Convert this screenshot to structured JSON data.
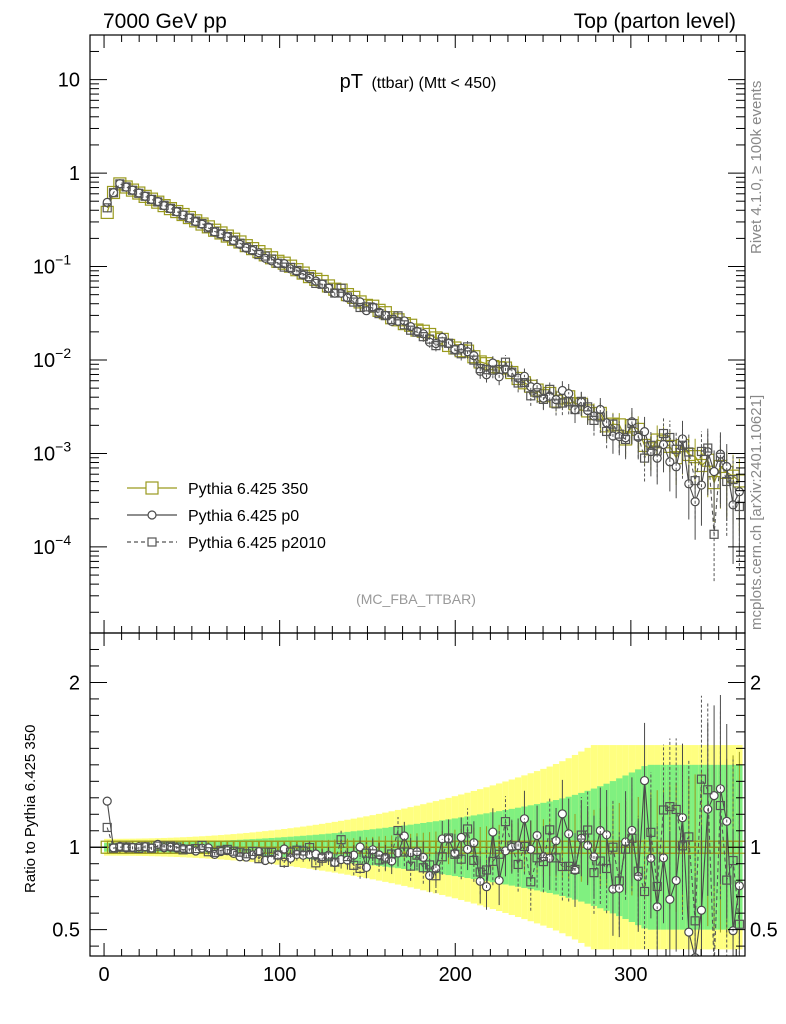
{
  "header": {
    "left": "7000 GeV pp",
    "right": "Top (parton level)"
  },
  "side_labels": {
    "rivet": "Rivet 4.1.0, ≥ 100k events",
    "mcplots": "mcplots.cern.ch [arXiv:2401.10621]"
  },
  "chart_data": {
    "type": "line",
    "title": "pT",
    "title_sub": "(ttbar) (Mtt < 450)",
    "analysis_label": "(MC_FBA_TTBAR)",
    "xlim": [
      -8,
      365
    ],
    "main_ylim": [
      1.2e-05,
      30
    ],
    "main_yscale": "log",
    "ratio_ylim": [
      0.34,
      2.3
    ],
    "ratio_ylabel": "Ratio to Pythia 6.425 350",
    "x_ticks": [
      {
        "value": 0,
        "label": "0"
      },
      {
        "value": 100,
        "label": "100"
      },
      {
        "value": 200,
        "label": "200"
      },
      {
        "value": 300,
        "label": "300"
      }
    ],
    "main_y_ticks": [
      {
        "value": 10,
        "base": "10",
        "exp": ""
      },
      {
        "value": 1,
        "base": "1",
        "exp": ""
      },
      {
        "value": 0.1,
        "base": "10",
        "exp": "−1"
      },
      {
        "value": 0.01,
        "base": "10",
        "exp": "−2"
      },
      {
        "value": 0.001,
        "base": "10",
        "exp": "−3"
      },
      {
        "value": 0.0001,
        "base": "10",
        "exp": "−4"
      }
    ],
    "ratio_y_ticks": [
      {
        "value": 2,
        "label": "2"
      },
      {
        "value": 1,
        "label": "1"
      },
      {
        "value": 0.5,
        "label": "0.5"
      }
    ],
    "series": [
      {
        "name": "Pythia 6.425 350",
        "color": "#9a9a1e",
        "marker": "square-large",
        "dash": "solid"
      },
      {
        "name": "Pythia 6.425 p0",
        "color": "#4a4a4a",
        "marker": "circle",
        "dash": "solid"
      },
      {
        "name": "Pythia 6.425 p2010",
        "color": "#555555",
        "marker": "square-small",
        "dash": "dashed"
      }
    ],
    "band_colors": {
      "outer": "#ffff80",
      "inner": "#80f080"
    },
    "bin_width": 3.6,
    "curve_model": "y(x) = peak 0.72 near x=10, falling exponentially with decay length ~47 GeV; ratio points fluctuate around 1 with growing spread at high pT"
  }
}
